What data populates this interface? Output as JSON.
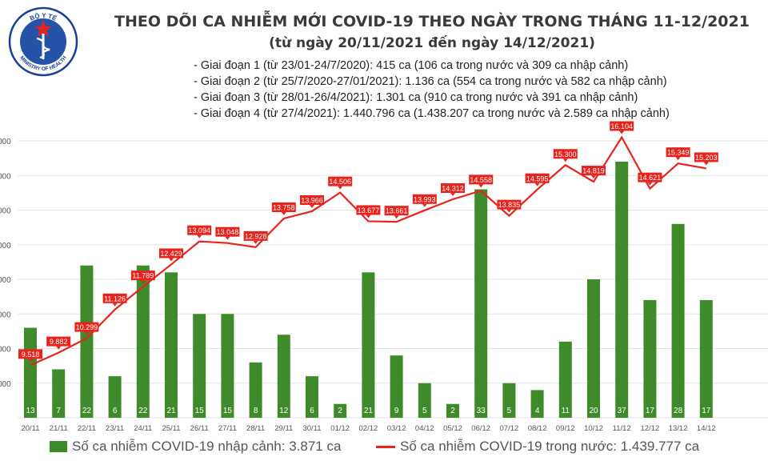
{
  "title": "THEO DÕI CA NHIỄM MỚI COVID-19 THEO NGÀY TRONG THÁNG 11-12/2021",
  "subtitle": "(từ ngày 20/11/2021 đến ngày 14/12/2021)",
  "notes": [
    "- Giai đoạn 1 (từ 23/01-24/7/2020): 415 ca (106 ca trong nước và 309 ca nhập cảnh)",
    "- Giai đoạn 2 (từ 25/7/2020-27/01/2021): 1.136 ca (554 ca trong nước và 582 ca nhập cảnh)",
    "- Giai đoạn 3 (từ 28/01-26/4/2021): 1.301 ca (910 ca trong nước và 391 ca nhập cảnh)",
    "- Giai đoạn 4 (từ 27/4/2021): 1.440.796 ca (1.438.207 ca trong nước và 2.589 ca nhập cảnh)"
  ],
  "logo": {
    "top_text": "BỘ Y TẾ",
    "bottom_text": "MINISTRY OF HEALTH",
    "colors": {
      "ring": "#1c3f94",
      "inner": "#2553a8",
      "star": "#e8231d"
    }
  },
  "legend": {
    "bars": "Số ca nhiễm COVID-19 nhập cảnh: 3.871 ca",
    "line": "Số ca nhiễm COVID-19 trong nước: 1.439.777 ca"
  },
  "colors": {
    "bar": "#3f8a2b",
    "line": "#e8231d",
    "label_bg": "#e8231d",
    "label_text": "#ffffff",
    "axis_text": "#555555"
  },
  "chart_data": {
    "type": "bar+line",
    "categories": [
      "20/11",
      "21/11",
      "22/11",
      "23/11",
      "24/11",
      "25/11",
      "26/11",
      "27/11",
      "28/11",
      "29/11",
      "30/11",
      "01/12",
      "02/12",
      "03/12",
      "04/12",
      "05/12",
      "06/12",
      "07/12",
      "08/12",
      "09/12",
      "10/12",
      "11/12",
      "12/12",
      "13/12",
      "14/12"
    ],
    "series": [
      {
        "name": "Số ca nhiễm COVID-19 nhập cảnh: 3.871 ca",
        "type": "bar",
        "values": [
          13,
          7,
          22,
          6,
          22,
          21,
          15,
          15,
          8,
          12,
          6,
          2,
          21,
          9,
          5,
          2,
          33,
          5,
          4,
          11,
          20,
          37,
          17,
          28,
          17
        ],
        "labels": [
          "13",
          "7",
          "22",
          "6",
          "22",
          "21",
          "15",
          "15",
          "8",
          "12",
          "6",
          "2",
          "21",
          "9",
          "5",
          "2",
          "33",
          "5",
          "4",
          "11",
          "20",
          "37",
          "17",
          "28",
          "17"
        ]
      },
      {
        "name": "Số ca nhiễm COVID-19 trong nước: 1.439.777 ca",
        "type": "line",
        "values": [
          9518,
          9882,
          10299,
          11126,
          11789,
          12429,
          13094,
          13048,
          12928,
          13758,
          13966,
          14506,
          13677,
          13661,
          13993,
          14312,
          14558,
          13835,
          14595,
          15300,
          14819,
          16104,
          14621,
          15349,
          15203
        ],
        "labels": [
          "9.518",
          "9.882",
          "10.299",
          "11.126",
          "11.789",
          "12.429",
          "13.094",
          "13.048",
          "12.928",
          "13.758",
          "13.966",
          "14.506",
          "13.677",
          "13.661",
          "13.993",
          "14.312",
          "14.558",
          "13.835",
          "14.595",
          "15.300",
          "14.819",
          "16.104",
          "14.621",
          "15.349",
          "15.203"
        ]
      }
    ],
    "bar_ylim": [
      0,
      40
    ],
    "line_ylim": [
      8000,
      16000
    ],
    "y_tick_labels": [
      "000",
      "000",
      "000",
      "000",
      "000",
      "000",
      "000",
      "000"
    ],
    "grid": true,
    "legend_position": "bottom"
  }
}
